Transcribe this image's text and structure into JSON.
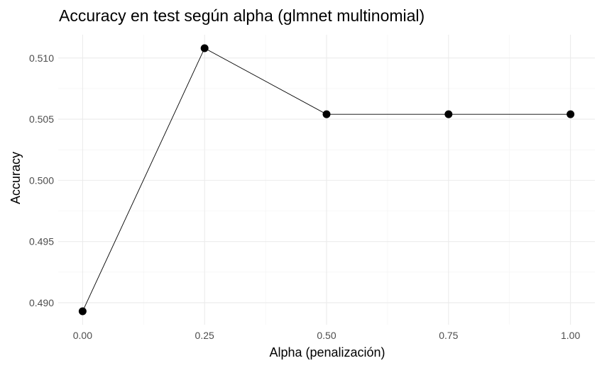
{
  "chart_data": {
    "type": "line",
    "title": "Accuracy en test según alpha (glmnet multinomial)",
    "xlabel": "Alpha (penalización)",
    "ylabel": "Accuracy",
    "x": [
      0.0,
      0.25,
      0.5,
      0.75,
      1.0
    ],
    "series": [
      {
        "values": [
          0.4893,
          0.5108,
          0.5054,
          0.5054,
          0.5054
        ]
      }
    ],
    "xlim": [
      -0.05,
      1.05
    ],
    "ylim": [
      0.4882,
      0.5119
    ],
    "x_ticks": [
      0.0,
      0.25,
      0.5,
      0.75,
      1.0
    ],
    "x_tick_labels": [
      "0.00",
      "0.25",
      "0.50",
      "0.75",
      "1.00"
    ],
    "y_ticks": [
      0.49,
      0.495,
      0.5,
      0.505,
      0.51
    ],
    "y_tick_labels": [
      "0.490",
      "0.495",
      "0.500",
      "0.505",
      "0.510"
    ],
    "grid": true,
    "legend": "none",
    "colors": {
      "line": "#000000",
      "point": "#000000",
      "grid": "#ebebeb",
      "tick_text": "#4d4d4d"
    }
  }
}
